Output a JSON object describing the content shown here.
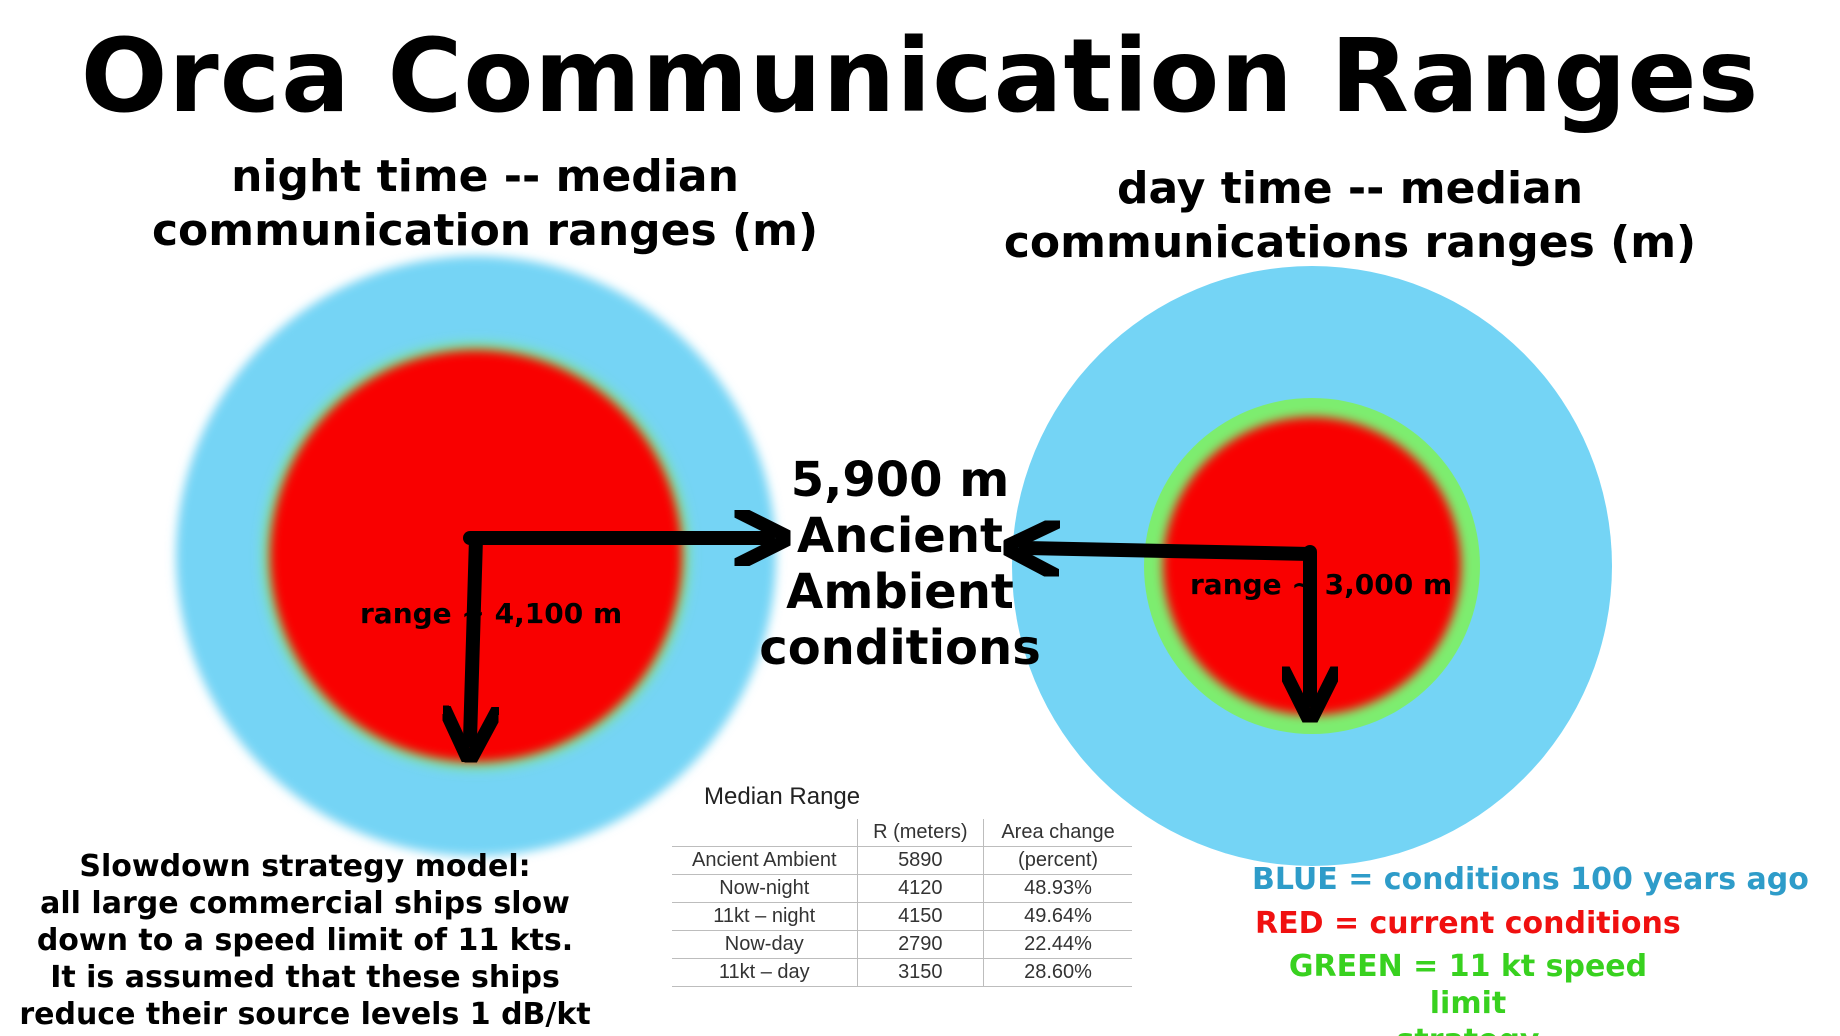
{
  "title": "Orca Communication Ranges",
  "night": {
    "title_line1": "night time -- median",
    "title_line2": "communication ranges (m)",
    "range_label": "range ~ 4,100 m"
  },
  "day": {
    "title_line1": "day time  -- median",
    "title_line2": "communications ranges (m)",
    "range_label": "range ~ 3,000 m"
  },
  "ancient": {
    "line1": "5,900 m",
    "line2": "Ancient",
    "line3": "Ambient",
    "line4": "conditions"
  },
  "strategy": {
    "line1": "Slowdown strategy model:",
    "line2": "all large commercial ships slow",
    "line3": "down to a speed limit of 11 kts.",
    "line4": "It is assumed that these ships",
    "line5": "reduce their source levels 1 dB/kt"
  },
  "table": {
    "title": "Median Range",
    "headers": [
      "",
      "R (meters)",
      "Area change"
    ],
    "rows": [
      [
        "Ancient Ambient",
        "5890",
        "(percent)"
      ],
      [
        "Now-night",
        "4120",
        "48.93%"
      ],
      [
        "11kt – night",
        "4150",
        "49.64%"
      ],
      [
        "Now-day",
        "2790",
        "22.44%"
      ],
      [
        "11kt – day",
        "3150",
        "28.60%"
      ]
    ]
  },
  "legend": {
    "blue": "BLUE = conditions 100 years ago",
    "red": "RED = current conditions",
    "green_line1": "GREEN = 11 kt speed limit",
    "green_line2": "strategy"
  },
  "colors": {
    "blue": "#74d4f5",
    "red": "#f90000",
    "green": "#7ded6f",
    "legend_blue": "#2e9cc9",
    "legend_red": "#f01010",
    "legend_green": "#38d11f"
  },
  "chart_data": {
    "type": "diagram",
    "night": {
      "ancient_m": 5890,
      "current_m": 4120,
      "speed_limit_m": 4150
    },
    "day": {
      "ancient_m": 5890,
      "current_m": 2790,
      "speed_limit_m": 3150
    }
  }
}
